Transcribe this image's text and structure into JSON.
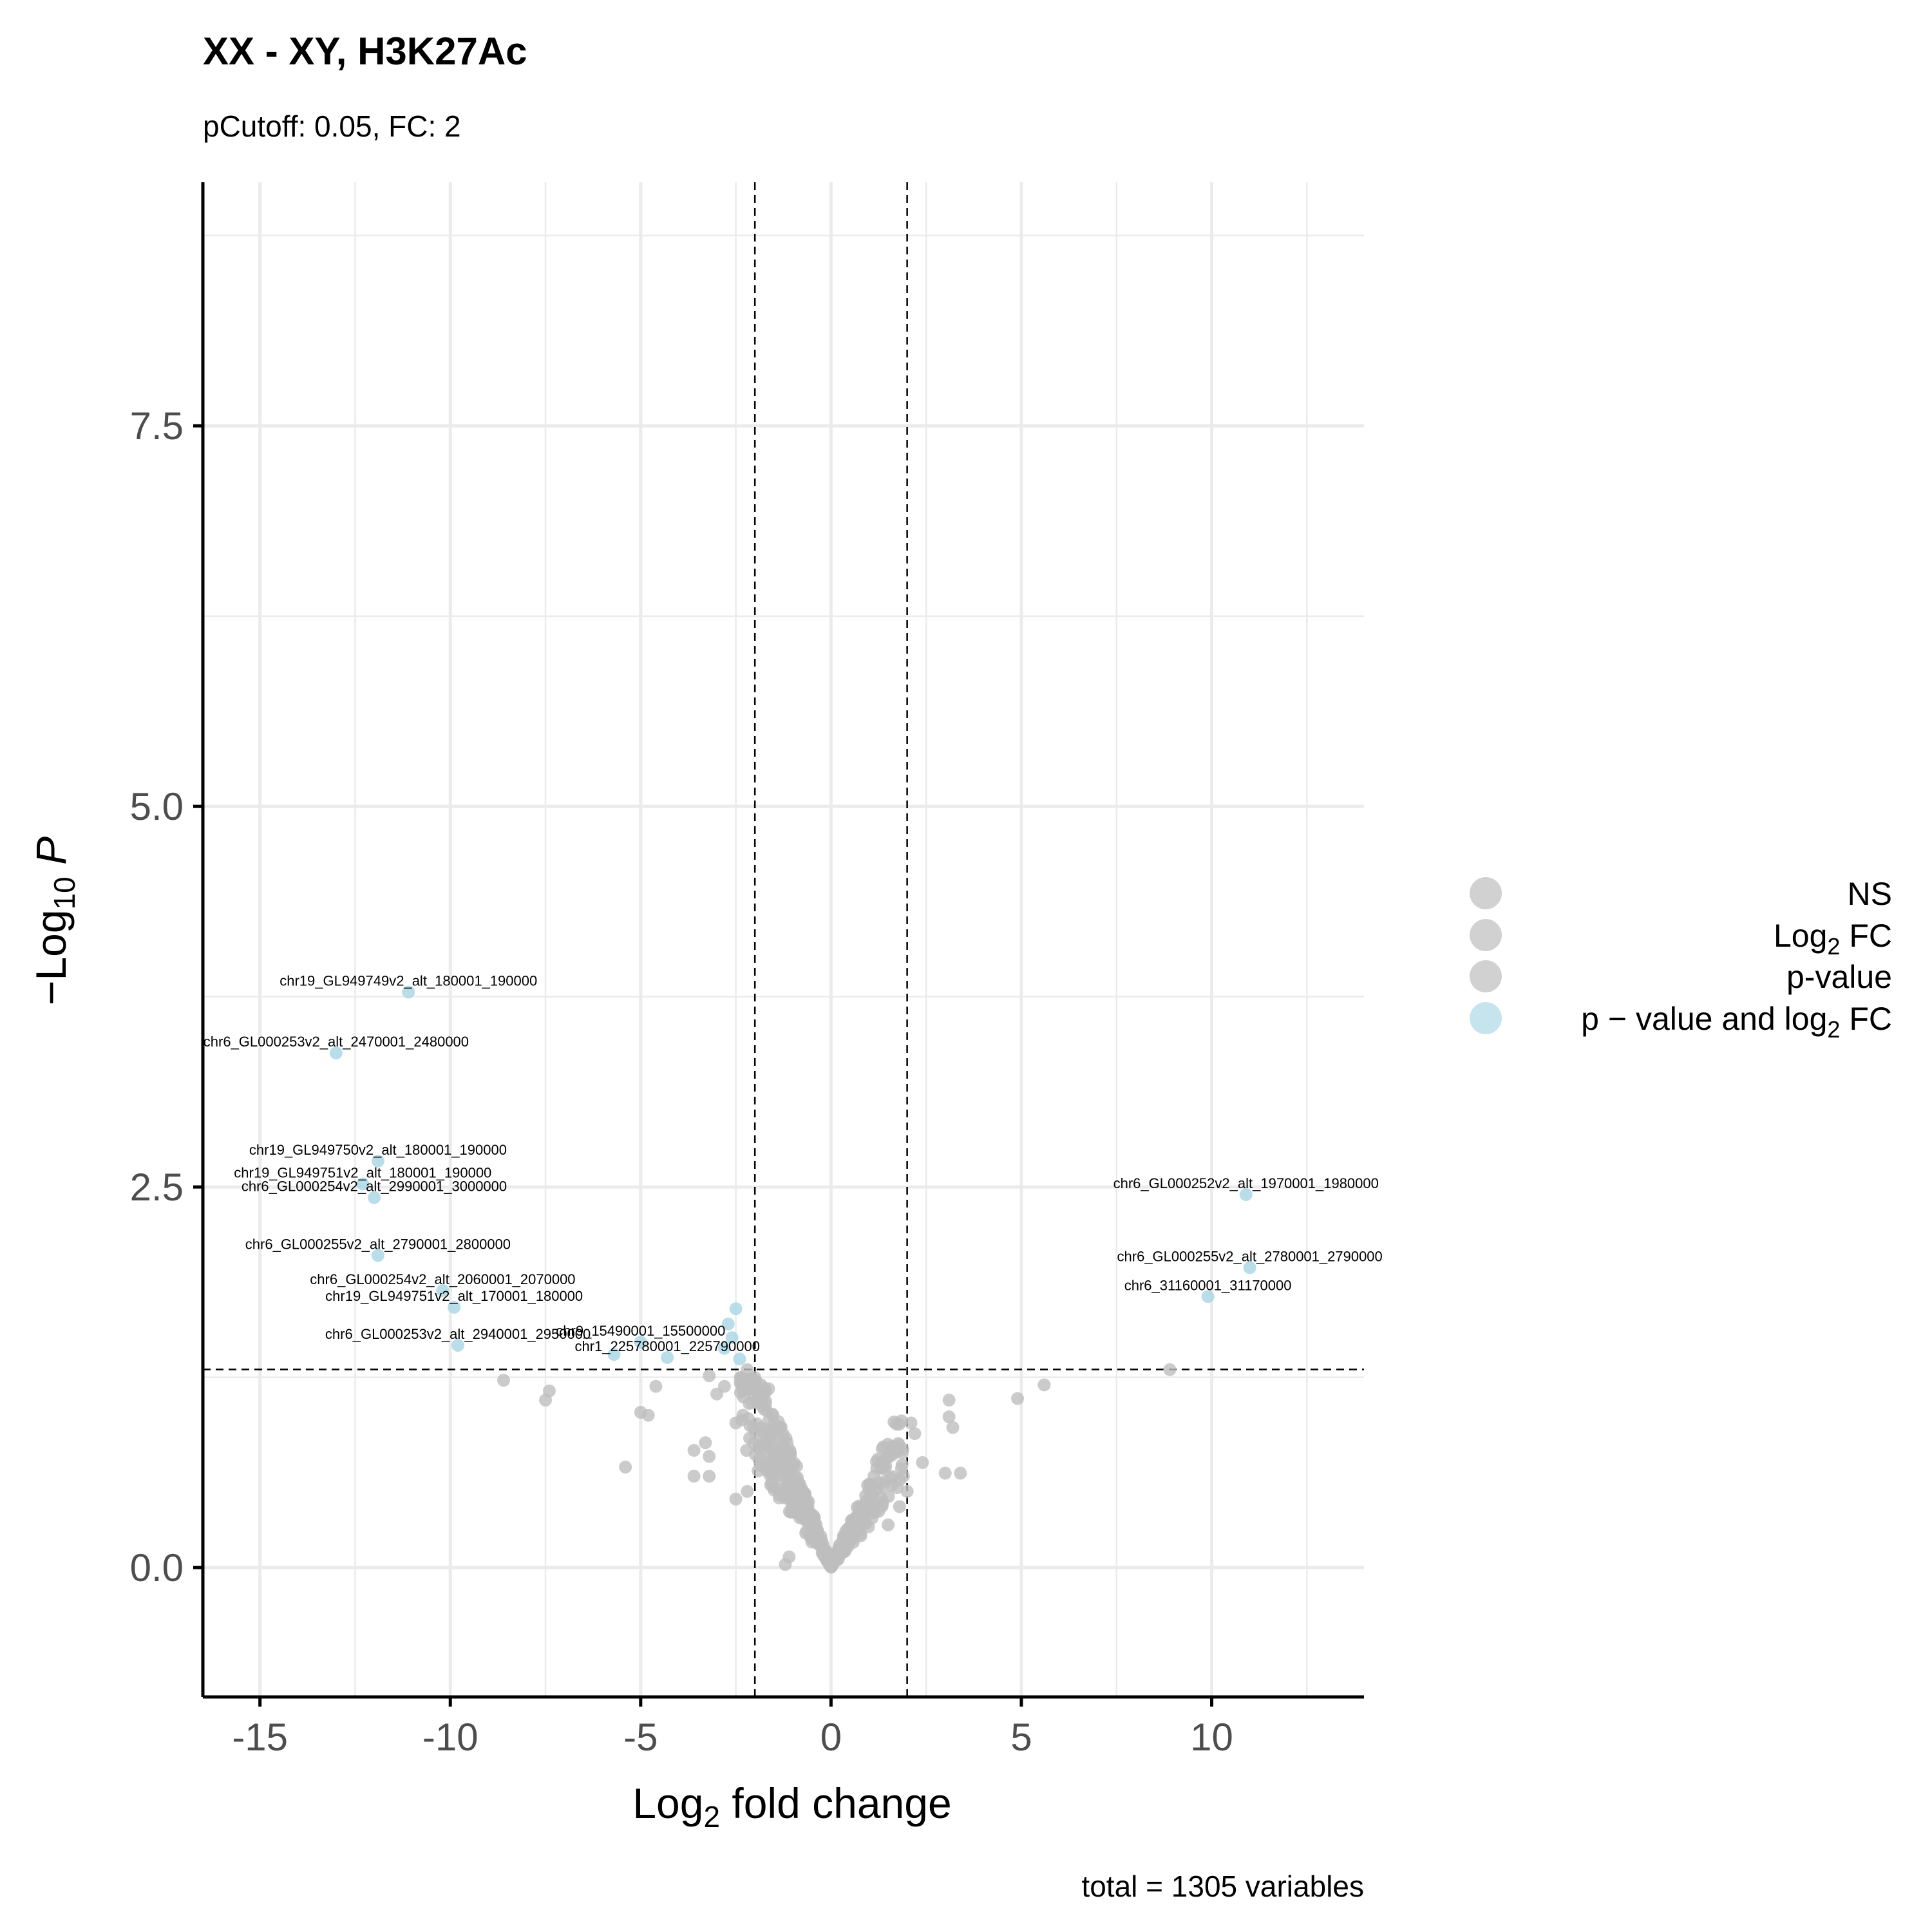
{
  "chart_data": {
    "type": "scatter",
    "title": "XX - XY, H3K27Ac",
    "subtitle": "pCutoff: 0.05, FC: 2",
    "caption": "total = 1305 variables",
    "xlabel": {
      "base": "Log",
      "sub": "2",
      "rest": " fold change"
    },
    "ylabel": {
      "pre": "−Log",
      "sub": "10",
      "rest": "P"
    },
    "xlim": [
      -16.5,
      14
    ],
    "ylim": [
      -0.85,
      9.1
    ],
    "x_ticks": [
      -15,
      -10,
      -5,
      0,
      5,
      10
    ],
    "x_tick_labels": [
      "-15",
      "-10",
      "-5",
      "0",
      "5",
      "10"
    ],
    "y_ticks": [
      0,
      2.5,
      5,
      7.5
    ],
    "y_tick_labels": [
      "0.0",
      "2.5",
      "5.0",
      "7.5"
    ],
    "grid": true,
    "cutoffs": {
      "log2fc": [
        -2,
        2
      ],
      "neg_log10_p": 1.301
    },
    "legend_position": "right",
    "legend": [
      {
        "key": "NS",
        "parts": [
          {
            "t": "NS"
          }
        ],
        "color": "#bebebe"
      },
      {
        "key": "log2fc",
        "parts": [
          {
            "t": "Log"
          },
          {
            "t": "2",
            "sub": true
          },
          {
            "t": " FC"
          }
        ],
        "color": "#bebebe"
      },
      {
        "key": "pvalue",
        "parts": [
          {
            "t": "p-value"
          }
        ],
        "color": "#bebebe"
      },
      {
        "key": "both",
        "parts": [
          {
            "t": "p − value and log"
          },
          {
            "t": "2",
            "sub": true
          },
          {
            "t": " FC"
          }
        ],
        "color": "#add8e6"
      }
    ],
    "colors": {
      "ns": "#bebebe",
      "significant": "#add8e6",
      "grid": "#ebebeb",
      "axis": "#000000"
    },
    "significant_points": [
      {
        "x": -11.1,
        "y": 3.78,
        "label": "chr19_GL949749v2_alt_180001_190000"
      },
      {
        "x": -13.0,
        "y": 3.38,
        "label": "chr6_GL000253v2_alt_2470001_2480000"
      },
      {
        "x": -11.9,
        "y": 2.67,
        "label": "chr19_GL949750v2_alt_180001_190000"
      },
      {
        "x": -12.3,
        "y": 2.52,
        "label": "chr19_GL949751v2_alt_180001_190000"
      },
      {
        "x": -12.0,
        "y": 2.43,
        "label": "chr6_GL000254v2_alt_2990001_3000000"
      },
      {
        "x": -11.9,
        "y": 2.05,
        "label": "chr6_GL000255v2_alt_2790001_2800000"
      },
      {
        "x": -10.2,
        "y": 1.82,
        "label": "chr6_GL000254v2_alt_2060001_2070000"
      },
      {
        "x": -9.9,
        "y": 1.71,
        "label": "chr19_GL949751v2_alt_170001_180000"
      },
      {
        "x": -9.8,
        "y": 1.46,
        "label": "chr6_GL000253v2_alt_2940001_2950000"
      },
      {
        "x": -5.0,
        "y": 1.48,
        "label": "chr9_15490001_15500000"
      },
      {
        "x": -4.3,
        "y": 1.38,
        "label": "chr1_225780001_225790000"
      },
      {
        "x": 10.9,
        "y": 2.45,
        "label": "chr6_GL000252v2_alt_1970001_1980000"
      },
      {
        "x": 11.0,
        "y": 1.97,
        "label": "chr6_GL000255v2_alt_2780001_2790000"
      },
      {
        "x": 9.9,
        "y": 1.78,
        "label": "chr6_31160001_31170000"
      },
      {
        "x": -2.5,
        "y": 1.7
      },
      {
        "x": -2.7,
        "y": 1.6
      },
      {
        "x": -2.6,
        "y": 1.51
      },
      {
        "x": -5.7,
        "y": 1.4
      },
      {
        "x": -2.8,
        "y": 1.44
      },
      {
        "x": -2.4,
        "y": 1.37
      }
    ],
    "ns_points": [
      [
        8.9,
        1.3
      ],
      [
        5.6,
        1.2
      ],
      [
        4.9,
        1.11
      ],
      [
        3.1,
        1.1
      ],
      [
        3.1,
        0.99
      ],
      [
        3.2,
        0.92
      ],
      [
        3.4,
        0.62
      ],
      [
        3.0,
        0.62
      ],
      [
        2.4,
        0.69
      ],
      [
        2.1,
        0.95
      ],
      [
        2.2,
        0.88
      ],
      [
        -8.6,
        1.23
      ],
      [
        -7.4,
        1.16
      ],
      [
        -7.5,
        1.1
      ],
      [
        -4.6,
        1.19
      ],
      [
        -5.0,
        1.02
      ],
      [
        -4.8,
        1.0
      ],
      [
        -5.4,
        0.66
      ],
      [
        -2.8,
        1.19
      ],
      [
        -3.0,
        1.14
      ],
      [
        -3.2,
        1.26
      ],
      [
        -3.3,
        0.82
      ],
      [
        -3.2,
        0.73
      ],
      [
        -3.6,
        0.77
      ],
      [
        -3.2,
        0.6
      ],
      [
        -3.6,
        0.6
      ],
      [
        -2.2,
        1.3
      ],
      [
        -2.1,
        1.23
      ],
      [
        -2.3,
        1.12
      ],
      [
        -2.0,
        1.22
      ],
      [
        -1.8,
        1.12
      ],
      [
        -2.5,
        0.95
      ],
      [
        -2.2,
        0.5
      ],
      [
        -2.5,
        0.45
      ],
      [
        -1.1,
        0.07
      ],
      [
        -1.2,
        0.02
      ],
      [
        1.6,
        0.54
      ],
      [
        1.8,
        0.4
      ],
      [
        2.0,
        0.5
      ],
      [
        1.5,
        0.28
      ],
      [
        1.9,
        0.6
      ]
    ]
  }
}
